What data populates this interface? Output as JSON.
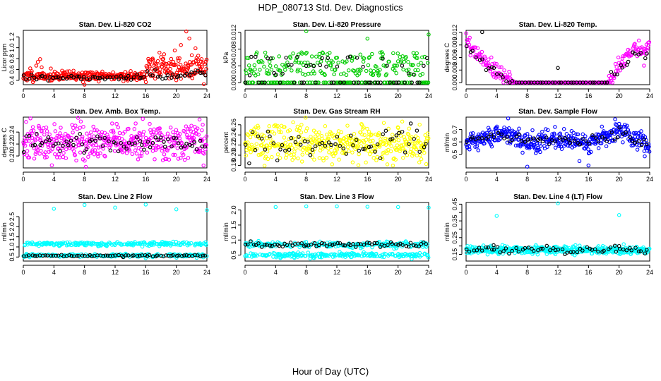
{
  "figure": {
    "title": "HDP_080713  Std. Dev. Diagnostics",
    "xlabel": "Hour of Day (UTC)"
  },
  "colors": {
    "red": "#ff0000",
    "green": "#00cc00",
    "magenta": "#ff00ff",
    "yellow": "#ffff00",
    "blue": "#0000ff",
    "cyan": "#00ffff",
    "black": "#000000"
  },
  "chart_data": [
    {
      "type": "scatter",
      "title": "Stan. Dev. Li-820 CO2",
      "ylabel": "Licor ppm",
      "xlim": [
        0,
        24
      ],
      "ylim": [
        0.32,
        1.32
      ],
      "xticks": [
        0,
        4,
        8,
        12,
        16,
        20,
        24
      ],
      "yticks": [
        0.4,
        0.6,
        0.8,
        1.0,
        1.2
      ],
      "ytick_labels": [
        "0.4",
        "0.6",
        "0.8",
        "1.0",
        "1.2"
      ],
      "series": [
        {
          "name": "all samples",
          "color": "red",
          "n": 400,
          "seed": 11,
          "segments": [
            [
              0,
              16,
              0.48,
              0.045
            ],
            [
              16,
              24,
              0.62,
              0.11
            ]
          ],
          "outliers": [
            [
              0.9,
              0.62
            ],
            [
              1.7,
              0.67
            ],
            [
              1.9,
              0.74
            ],
            [
              2.2,
              0.79
            ],
            [
              16.9,
              0.8
            ],
            [
              17.8,
              0.91
            ],
            [
              18.4,
              0.88
            ],
            [
              19.8,
              0.95
            ],
            [
              20.6,
              1.05
            ],
            [
              21.3,
              1.3
            ],
            [
              21.7,
              1.17
            ],
            [
              22.5,
              0.99
            ],
            [
              23.3,
              0.79
            ],
            [
              23.6,
              0.33
            ],
            [
              8.0,
              0.32
            ]
          ]
        },
        {
          "name": "hourly",
          "color": "black",
          "n": 70,
          "seed": 12,
          "segments": [
            [
              0,
              16,
              0.45,
              0.03
            ],
            [
              16,
              24,
              0.5,
              0.05
            ]
          ],
          "outliers": []
        }
      ]
    },
    {
      "type": "scatter",
      "title": "Stan. Dev. Li-820 Pressure",
      "ylabel": "kPa",
      "xlim": [
        0,
        24
      ],
      "ylim": [
        -0.0005,
        0.0125
      ],
      "xticks": [
        0,
        4,
        8,
        12,
        16,
        20,
        24
      ],
      "yticks": [
        0.0,
        0.004,
        0.008,
        0.012
      ],
      "ytick_labels": [
        "0.000",
        "0.004",
        "0.008",
        "0.012"
      ],
      "series": [
        {
          "name": "all samples",
          "color": "green",
          "n": 300,
          "seed": 21,
          "discrete": [
            0.0,
            0.0,
            0.0,
            0.002,
            0.003,
            0.004,
            0.005,
            0.006,
            0.007
          ],
          "jitter": 0.0003,
          "outliers": [
            [
              8.0,
              0.0123
            ],
            [
              16.0,
              0.0105
            ],
            [
              24.0,
              0.0115
            ]
          ]
        },
        {
          "name": "hourly",
          "color": "black",
          "n": 60,
          "seed": 22,
          "discrete": [
            0.0,
            0.0,
            0.002,
            0.004,
            0.006
          ],
          "jitter": 0.0003,
          "outliers": []
        }
      ]
    },
    {
      "type": "scatter",
      "title": "Stan. Dev. Li-820 Temp.",
      "ylabel": "degrees C",
      "xlim": [
        0,
        24
      ],
      "ylim": [
        -0.0005,
        0.0125
      ],
      "xticks": [
        0,
        4,
        8,
        12,
        16,
        20,
        24
      ],
      "yticks": [
        0.0,
        0.003,
        0.006,
        0.009,
        0.012
      ],
      "ytick_labels": [
        "0.000",
        "0.003",
        "0.006",
        "0.009",
        "0.012"
      ],
      "series": [
        {
          "name": "all samples",
          "color": "magenta",
          "n": 320,
          "seed": 31,
          "curve": [
            [
              0,
              0.0095
            ],
            [
              4,
              0.0025
            ],
            [
              6.5,
              0.0
            ],
            [
              18.5,
              0.0
            ],
            [
              21.5,
              0.0075
            ],
            [
              24,
              0.008
            ]
          ],
          "spread": 0.0011,
          "outliers": []
        },
        {
          "name": "hourly",
          "color": "black",
          "n": 60,
          "seed": 32,
          "curve": [
            [
              0,
              0.009
            ],
            [
              4,
              0.002
            ],
            [
              6.5,
              0.0
            ],
            [
              18.5,
              0.0
            ],
            [
              22,
              0.007
            ],
            [
              24,
              0.007
            ]
          ],
          "spread": 0.0008,
          "outliers": [
            [
              2.1,
              0.0121
            ],
            [
              12.0,
              0.0035
            ]
          ]
        }
      ]
    },
    {
      "type": "scatter",
      "title": "Stan. Dev. Amb. Box Temp.",
      "ylabel": "degrees C",
      "xlim": [
        0,
        24
      ],
      "ylim": [
        0.18,
        0.265
      ],
      "xticks": [
        0,
        4,
        8,
        12,
        16,
        20,
        24
      ],
      "yticks": [
        0.2,
        0.22,
        0.24
      ],
      "ytick_labels": [
        "0.20",
        "0.22",
        "0.24"
      ],
      "series": [
        {
          "name": "all samples",
          "color": "magenta",
          "n": 420,
          "seed": 41,
          "segments": [
            [
              0,
              24,
              0.222,
              0.016
            ]
          ],
          "outliers": []
        },
        {
          "name": "hourly",
          "color": "black",
          "n": 70,
          "seed": 42,
          "segments": [
            [
              0,
              24,
              0.222,
              0.008
            ]
          ],
          "outliers": []
        }
      ]
    },
    {
      "type": "scatter",
      "title": "Stan. Dev. Gas Stream RH",
      "ylabel": "percent",
      "xlim": [
        0,
        24
      ],
      "ylim": [
        0.175,
        0.275
      ],
      "xticks": [
        0,
        4,
        8,
        12,
        16,
        20,
        24
      ],
      "yticks": [
        0.18,
        0.2,
        0.22,
        0.24,
        0.26
      ],
      "ytick_labels": [
        "0.18",
        "0.20",
        "0.22",
        "0.24",
        "0.26"
      ],
      "series": [
        {
          "name": "all samples",
          "color": "yellow",
          "n": 420,
          "seed": 51,
          "segments": [
            [
              0,
              24,
              0.224,
              0.018
            ]
          ],
          "outliers": []
        },
        {
          "name": "hourly",
          "color": "black",
          "n": 60,
          "seed": 52,
          "segments": [
            [
              0,
              24,
              0.222,
              0.015
            ]
          ],
          "outliers": []
        }
      ]
    },
    {
      "type": "scatter",
      "title": "Stan. Dev. Sample Flow",
      "ylabel": "ml/min",
      "xlim": [
        0,
        24
      ],
      "ylim": [
        0.39,
        0.8
      ],
      "xticks": [
        0,
        4,
        8,
        12,
        16,
        20,
        24
      ],
      "yticks": [
        0.5,
        0.6,
        0.7
      ],
      "ytick_labels": [
        "0.5",
        "0.6",
        "0.7"
      ],
      "series": [
        {
          "name": "all samples",
          "color": "blue",
          "n": 430,
          "seed": 61,
          "curve": [
            [
              0,
              0.6
            ],
            [
              4,
              0.66
            ],
            [
              6,
              0.66
            ],
            [
              8,
              0.59
            ],
            [
              12,
              0.62
            ],
            [
              16,
              0.6
            ],
            [
              20,
              0.69
            ],
            [
              24,
              0.56
            ]
          ],
          "spread": 0.04,
          "outliers": [
            [
              8.0,
              0.4
            ],
            [
              16.0,
              0.41
            ],
            [
              5.5,
              0.79
            ]
          ]
        },
        {
          "name": "hourly",
          "color": "black",
          "n": 60,
          "seed": 62,
          "curve": [
            [
              0,
              0.6
            ],
            [
              4,
              0.66
            ],
            [
              8,
              0.6
            ],
            [
              12,
              0.62
            ],
            [
              16,
              0.6
            ],
            [
              20,
              0.68
            ],
            [
              24,
              0.57
            ]
          ],
          "spread": 0.02,
          "outliers": []
        }
      ]
    },
    {
      "type": "scatter",
      "title": "Stan. Dev. Line 2 Flow",
      "ylabel": "ml/min",
      "xlim": [
        0,
        24
      ],
      "ylim": [
        0.3,
        3.2
      ],
      "xticks": [
        0,
        4,
        8,
        12,
        16,
        20,
        24
      ],
      "yticks": [
        0.5,
        1.0,
        1.5,
        2.0,
        2.5
      ],
      "ytick_labels": [
        "0.5",
        "1.0",
        "1.5",
        "2.0",
        "2.5"
      ],
      "series": [
        {
          "name": "all samples",
          "color": "cyan",
          "n": 440,
          "seed": 71,
          "bands": [
            [
              1.15,
              0.05
            ],
            [
              0.57,
              0.04
            ]
          ],
          "outliers": [
            [
              4.0,
              2.89
            ],
            [
              8.0,
              3.08
            ],
            [
              12.0,
              2.95
            ],
            [
              16.0,
              3.1
            ],
            [
              20.0,
              2.86
            ],
            [
              24.0,
              2.82
            ]
          ]
        },
        {
          "name": "hourly",
          "color": "black",
          "n": 70,
          "seed": 72,
          "bands": [
            [
              0.56,
              0.02
            ]
          ],
          "outliers": []
        }
      ]
    },
    {
      "type": "scatter",
      "title": "Stan. Dev. Line 3 Flow",
      "ylabel": "ml/min",
      "xlim": [
        0,
        24
      ],
      "ylim": [
        0.3,
        2.25
      ],
      "xticks": [
        0,
        4,
        8,
        12,
        16,
        20,
        24
      ],
      "yticks": [
        0.5,
        1.0,
        1.5,
        2.0
      ],
      "ytick_labels": [
        "0.5",
        "1.0",
        "1.5",
        "2.0"
      ],
      "series": [
        {
          "name": "all samples",
          "color": "cyan",
          "n": 440,
          "seed": 81,
          "bands": [
            [
              0.85,
              0.05
            ],
            [
              0.5,
              0.04
            ]
          ],
          "outliers": [
            [
              4.0,
              2.1
            ],
            [
              8.0,
              2.12
            ],
            [
              12.0,
              2.12
            ],
            [
              16.0,
              2.11
            ],
            [
              20.0,
              2.1
            ],
            [
              24.0,
              2.08
            ]
          ]
        },
        {
          "name": "hourly",
          "color": "black",
          "n": 70,
          "seed": 82,
          "bands": [
            [
              0.85,
              0.04
            ]
          ],
          "outliers": []
        }
      ]
    },
    {
      "type": "scatter",
      "title": "Stan. Dev. Line 4 (LT) Flow",
      "ylabel": "ml/min",
      "xlim": [
        0,
        24
      ],
      "ylim": [
        0.11,
        0.46
      ],
      "xticks": [
        0,
        4,
        8,
        12,
        16,
        20,
        24
      ],
      "yticks": [
        0.15,
        0.2,
        0.25,
        0.3,
        0.35,
        0.4,
        0.45
      ],
      "ytick_labels": [
        "0.15",
        "",
        "0.25",
        "",
        "0.35",
        "",
        "0.45"
      ],
      "series": [
        {
          "name": "all samples",
          "color": "cyan",
          "n": 430,
          "seed": 91,
          "segments": [
            [
              0,
              24,
              0.175,
              0.012
            ]
          ],
          "outliers": [
            [
              4.0,
              0.38
            ],
            [
              12.0,
              0.455
            ],
            [
              20.0,
              0.385
            ]
          ]
        },
        {
          "name": "hourly",
          "color": "black",
          "n": 60,
          "seed": 92,
          "segments": [
            [
              0,
              24,
              0.175,
              0.012
            ]
          ],
          "outliers": [
            [
              3.6,
              0.205
            ],
            [
              20.0,
              0.2
            ]
          ]
        }
      ]
    }
  ]
}
